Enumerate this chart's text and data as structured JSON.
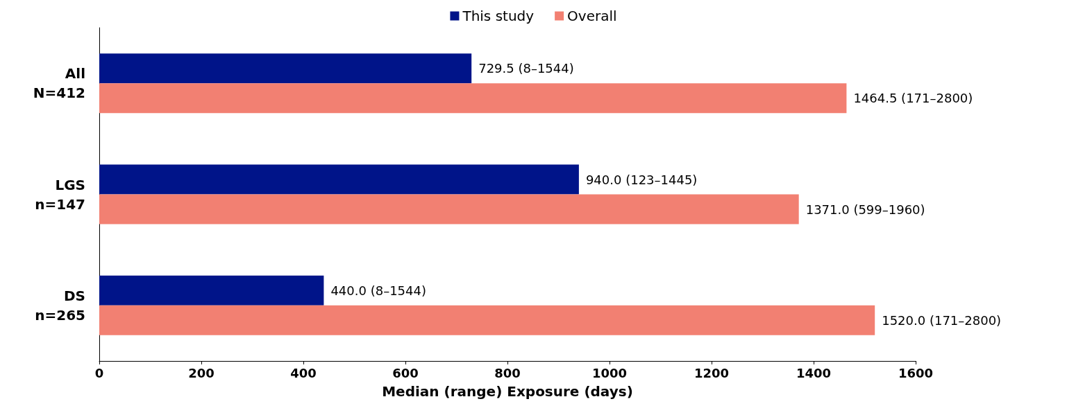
{
  "chart_data": {
    "type": "bar",
    "orientation": "horizontal",
    "xlabel": "Median (range) Exposure (days)",
    "categories": [
      "All\nN=412",
      "LGS\nn=147",
      "DS\nn=265"
    ],
    "series": [
      {
        "name": "This study",
        "color": "#001489",
        "values": [
          729.5,
          940.0,
          440.0
        ],
        "value_labels": [
          "729.5 (8–1544)",
          "940.0 (123–1445)",
          "440.0 (8–1544)"
        ]
      },
      {
        "name": "Overall",
        "color": "#f28072",
        "values": [
          1464.5,
          1371.0,
          1520.0
        ],
        "value_labels": [
          "1464.5 (171–2800)",
          "1371.0 (599–1960)",
          "1520.0 (171–2800)"
        ]
      }
    ],
    "xlim": [
      0,
      1600
    ],
    "xticks": [
      0,
      200,
      400,
      600,
      800,
      1000,
      1200,
      1400,
      1600
    ],
    "grid": false,
    "legend": "top"
  }
}
